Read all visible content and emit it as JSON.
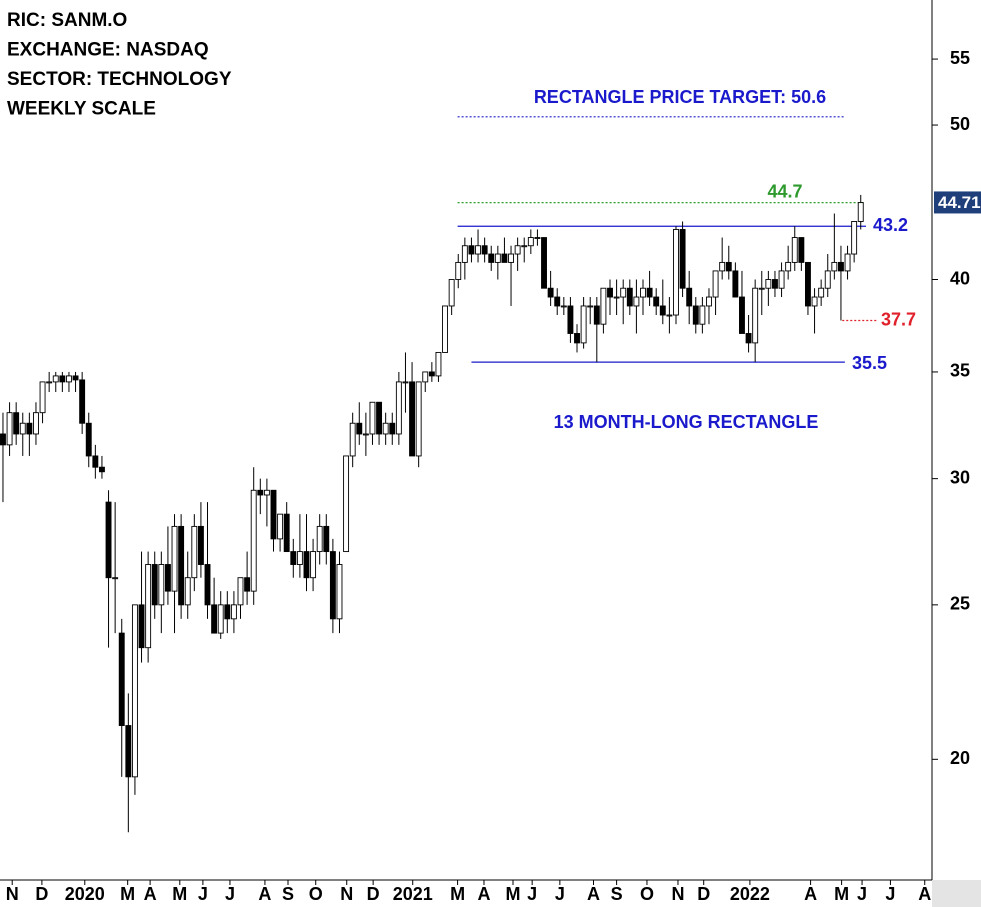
{
  "chart_data": {
    "type": "candlestick",
    "info": [
      "RIC: SANM.O",
      "EXCHANGE: NASDAQ",
      "SECTOR: TECHNOLOGY",
      "WEEKLY SCALE"
    ],
    "log_scale": true,
    "ylim": [
      16.8,
      59.9
    ],
    "yticks": [
      20,
      25,
      30,
      35,
      40,
      50,
      55
    ],
    "xlim": [
      -0.45,
      140.8
    ],
    "xticks": [
      {
        "value": 1.4,
        "label": "N"
      },
      {
        "value": 5.9,
        "label": "D"
      },
      {
        "value": 12.4,
        "label": "2020"
      },
      {
        "value": 18.9,
        "label": "M"
      },
      {
        "value": 22.3,
        "label": "A"
      },
      {
        "value": 26.8,
        "label": "M"
      },
      {
        "value": 30.3,
        "label": "J"
      },
      {
        "value": 34.4,
        "label": "J"
      },
      {
        "value": 39.7,
        "label": "A"
      },
      {
        "value": 43.2,
        "label": "S"
      },
      {
        "value": 47.4,
        "label": "O"
      },
      {
        "value": 52.1,
        "label": "N"
      },
      {
        "value": 56.1,
        "label": "D"
      },
      {
        "value": 62.1,
        "label": "2021"
      },
      {
        "value": 68.9,
        "label": "M"
      },
      {
        "value": 72.9,
        "label": "A"
      },
      {
        "value": 77.3,
        "label": "M"
      },
      {
        "value": 80.2,
        "label": "J"
      },
      {
        "value": 84.4,
        "label": "J"
      },
      {
        "value": 89.5,
        "label": "A"
      },
      {
        "value": 93,
        "label": "S"
      },
      {
        "value": 97.6,
        "label": "O"
      },
      {
        "value": 102.3,
        "label": "N"
      },
      {
        "value": 106.2,
        "label": "D"
      },
      {
        "value": 113.2,
        "label": "2022"
      },
      {
        "value": 122.4,
        "label": "A"
      },
      {
        "value": 127.1,
        "label": "M"
      },
      {
        "value": 130.2,
        "label": "J"
      },
      {
        "value": 134.5,
        "label": "J"
      },
      {
        "value": 139.7,
        "label": "A"
      }
    ],
    "up_color": "#ffffff",
    "down_color": "#000000",
    "candles": {
      "open": [
        32,
        31.5,
        33,
        32,
        32.5,
        32,
        33,
        34.5,
        34.5,
        34.8,
        34.5,
        34.8,
        34.6,
        32.5,
        31,
        30.5,
        29,
        26,
        24,
        21,
        19.5,
        25,
        23.5,
        26.5,
        25,
        26.5,
        25.5,
        28,
        25,
        26,
        28,
        26.5,
        25,
        24,
        25,
        24.5,
        25,
        26,
        25.5,
        29.5,
        29.3,
        29.5,
        27.5,
        28.5,
        27,
        26.5,
        27,
        26,
        27,
        28,
        27,
        24.5,
        27,
        31,
        32.5,
        32,
        32,
        33.5,
        32,
        32.5,
        32,
        34.5,
        34.5,
        31,
        34.5,
        35,
        34.8,
        36,
        38.5,
        40,
        41,
        42,
        41.5,
        42,
        41.5,
        41,
        41.5,
        41,
        41.5,
        42,
        42,
        42.5,
        42.5,
        39.5,
        39,
        38.5,
        38.5,
        37,
        36.5,
        38.5,
        38.5,
        37.5,
        39.5,
        39,
        39,
        39.5,
        38.5,
        39,
        39.5,
        39,
        38.5,
        38,
        38,
        43,
        39.5,
        38.5,
        37.5,
        38.5,
        39,
        40.5,
        41,
        40.5,
        39,
        37,
        36.5,
        39.5,
        39.5,
        40,
        39.5,
        40.5,
        41,
        42.5,
        41,
        38.5,
        39,
        39.5,
        40.5,
        41,
        40.5,
        41.5,
        43.5
      ],
      "high": [
        33,
        33.5,
        33.5,
        33,
        33,
        33.5,
        34.5,
        35,
        35,
        35,
        35,
        35,
        35,
        33,
        31.5,
        31,
        29.5,
        29,
        24.5,
        22,
        25,
        27,
        27,
        27,
        27,
        28,
        28.5,
        28.5,
        27,
        28.5,
        29,
        29,
        26,
        25.5,
        25.5,
        25.5,
        26,
        27,
        30.5,
        30,
        30,
        29.5,
        28.5,
        29,
        27.5,
        28.5,
        28.5,
        27.5,
        28.5,
        28.5,
        27.5,
        27,
        31,
        33,
        33.5,
        33,
        33.5,
        33.5,
        33,
        33,
        35,
        36,
        35.5,
        34.5,
        35,
        35.5,
        36,
        38.5,
        40,
        41.5,
        42.5,
        42.5,
        43,
        42.5,
        42,
        42,
        42.5,
        42,
        42.5,
        42.5,
        43,
        43,
        42.5,
        40.5,
        39.5,
        39,
        39,
        37.5,
        39,
        39,
        39,
        39.5,
        40,
        40,
        40,
        40,
        40,
        40,
        40.5,
        39.5,
        40,
        39,
        43.2,
        43.5,
        40.5,
        39,
        39,
        39.5,
        40.5,
        42.5,
        42,
        41,
        40.5,
        38,
        40,
        40.5,
        40.5,
        40.5,
        41,
        42,
        43.2,
        42.5,
        41,
        39.5,
        40,
        41.5,
        44,
        42,
        42,
        43.5,
        45.2
      ],
      "low": [
        29,
        31,
        31.5,
        31,
        31,
        31.5,
        32.5,
        34,
        34,
        34,
        34,
        34,
        32,
        30.5,
        30,
        30,
        23.5,
        24,
        19.5,
        18,
        19,
        23,
        23,
        24.5,
        24,
        25,
        24,
        24.5,
        24.5,
        25.5,
        26,
        24.5,
        24,
        23.8,
        24,
        24,
        24.5,
        25,
        25,
        28.5,
        28,
        27,
        27,
        27,
        26,
        26,
        25.5,
        25.5,
        26.5,
        26.5,
        24,
        24,
        27,
        30.5,
        31.5,
        31,
        31.5,
        31.5,
        31.5,
        31.5,
        31.5,
        33,
        31,
        30.5,
        34,
        34.5,
        34.5,
        36,
        38,
        39.5,
        40,
        41,
        41,
        41,
        40.5,
        40,
        41,
        38.5,
        40.5,
        41,
        41.5,
        42,
        39.5,
        38.5,
        38,
        38,
        36.5,
        36,
        36.2,
        37.5,
        35.5,
        37,
        38,
        38,
        37.5,
        38,
        37,
        38,
        38.5,
        38,
        37.5,
        37,
        37.5,
        39,
        37.5,
        37,
        37,
        37.5,
        38,
        40,
        40,
        39,
        37,
        36,
        35.5,
        38,
        38.5,
        39,
        39,
        40,
        40.5,
        40.5,
        38,
        37,
        38.5,
        39,
        40,
        37.7,
        40,
        41,
        43
      ],
      "close": [
        31.5,
        33,
        32,
        32.5,
        32,
        33,
        34.5,
        34.5,
        34.8,
        34.5,
        34.8,
        34.6,
        32.5,
        31,
        30.5,
        30.3,
        26,
        26,
        21,
        19.5,
        25,
        23.5,
        26.5,
        25,
        26.5,
        25.5,
        28,
        25,
        26,
        28,
        26.5,
        25,
        24,
        25,
        24.5,
        25,
        26,
        25.5,
        29.5,
        29.3,
        29.5,
        27.5,
        28.5,
        27,
        26.5,
        27,
        26,
        27,
        28,
        27,
        24.5,
        26.5,
        31,
        32.5,
        32,
        32,
        33.5,
        32,
        32.5,
        32,
        34.5,
        34.5,
        31,
        34.5,
        35,
        34.8,
        36,
        38.5,
        40,
        41,
        42,
        41.5,
        42,
        41.5,
        41,
        41.5,
        41,
        41.5,
        42,
        42,
        42.5,
        42.5,
        39.5,
        39,
        38.5,
        38.5,
        37,
        36.5,
        38.5,
        38.5,
        37.5,
        39.5,
        39,
        39,
        39.5,
        38.5,
        39,
        39.5,
        39,
        38.5,
        38,
        38,
        43,
        39.5,
        38.5,
        37.5,
        38.5,
        39,
        40.5,
        41,
        40.5,
        39,
        37,
        36.5,
        39.5,
        39.5,
        40,
        39.5,
        40.5,
        41,
        42.5,
        41,
        38.5,
        39,
        39.5,
        40.5,
        41,
        40.5,
        41.5,
        43.5,
        44.7
      ]
    },
    "levels": [
      {
        "value": 50.6,
        "color": "#1a1acc",
        "style": "dotted",
        "from": 68.9,
        "to": 127.6
      },
      {
        "value": 44.7,
        "color": "#2e9a2e",
        "style": "dotted",
        "from": 68.9,
        "to": 130.6,
        "label_color": "#2e9a2e"
      },
      {
        "value": 43.2,
        "color": "#1a1acc",
        "style": "solid",
        "from": 68.9,
        "to": 130.8,
        "label_color": "#1a1acc"
      },
      {
        "value": 37.7,
        "color": "#e0202a",
        "style": "dotted",
        "from": 127.2,
        "to": 132.5,
        "label_color": "#e0202a"
      },
      {
        "value": 35.5,
        "color": "#1a1acc",
        "style": "solid",
        "from": 71,
        "to": 127.6,
        "label_color": "#1a1acc"
      }
    ],
    "annotations": [
      "RECTANGLE PRICE TARGET: 50.6",
      "13 MONTH-LONG RECTANGLE"
    ],
    "annotation_color": "#1a1acc",
    "last_price": 44.71,
    "last_price_color": "#1f3f7a"
  }
}
